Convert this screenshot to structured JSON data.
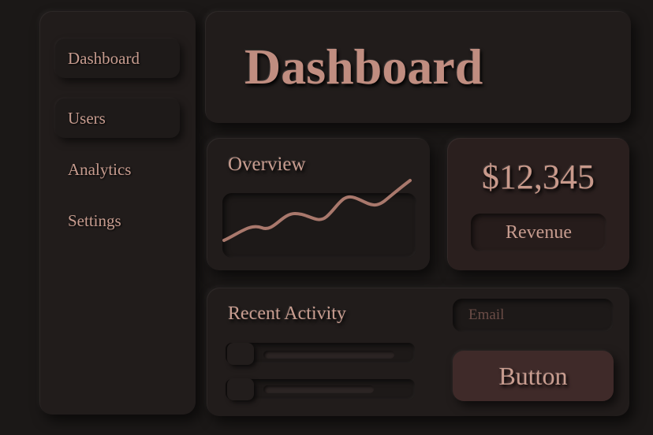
{
  "sidebar": {
    "items": [
      "Dashboard",
      "Users",
      "Analytics",
      "Settings"
    ]
  },
  "header": {
    "title": "Dashboard"
  },
  "overview": {
    "title": "Overview"
  },
  "revenue": {
    "amount": "$12,345",
    "label": "Revenue"
  },
  "activity": {
    "title": "Recent Activity",
    "email_placeholder": "Email",
    "button": "Button"
  }
}
